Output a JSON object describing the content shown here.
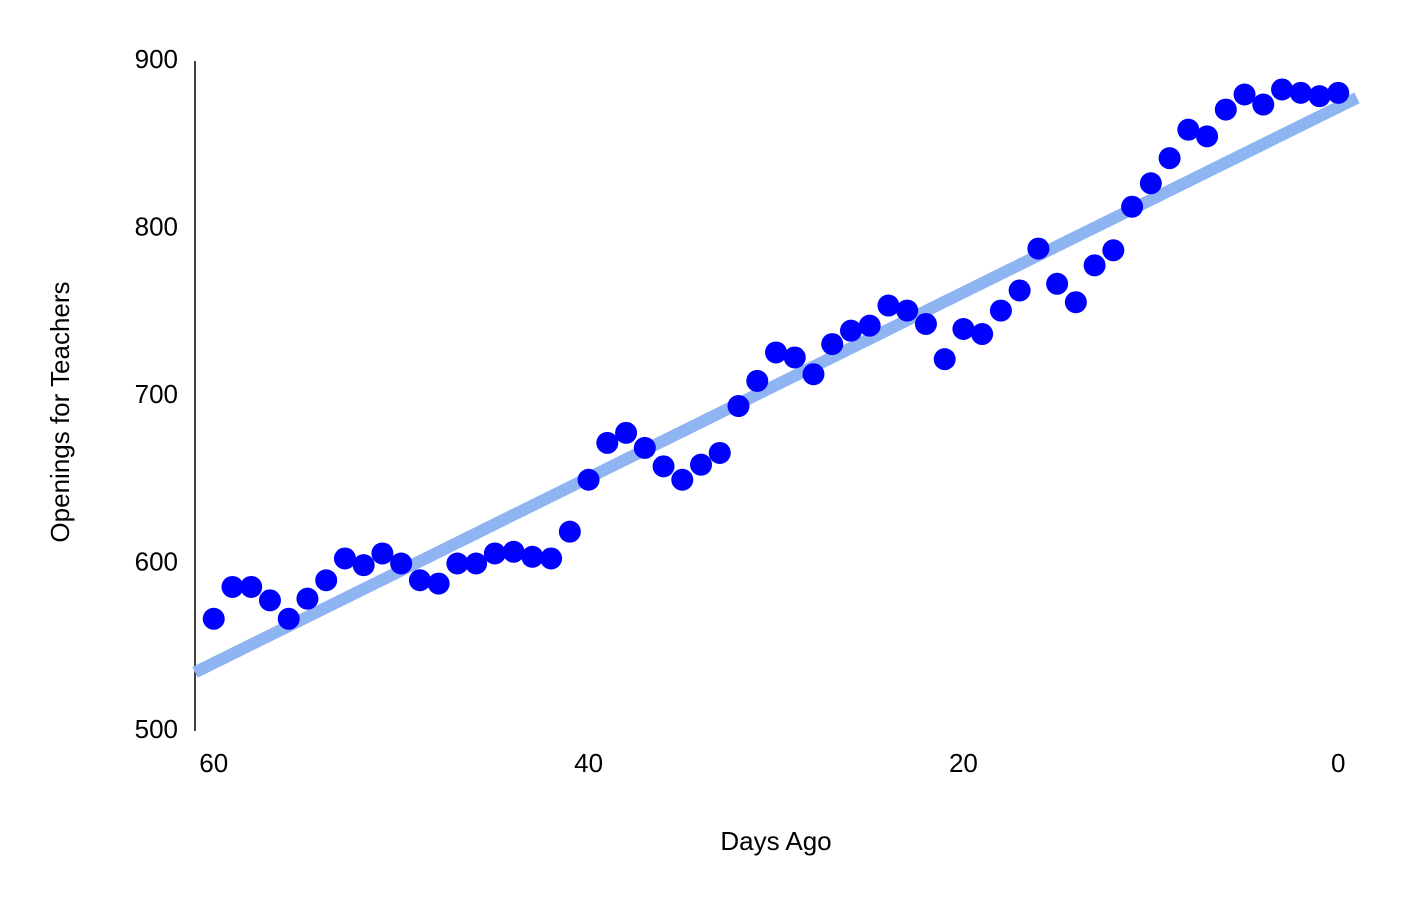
{
  "chart_data": {
    "type": "scatter",
    "x_label": "Days Ago",
    "y_label": "Openings for Teachers",
    "x": [
      60,
      59,
      58,
      57,
      56,
      55,
      54,
      53,
      52,
      51,
      50,
      49,
      48,
      47,
      46,
      45,
      44,
      43,
      42,
      41,
      40,
      39,
      38,
      37,
      36,
      35,
      34,
      33,
      32,
      31,
      30,
      29,
      28,
      27,
      26,
      25,
      24,
      23,
      22,
      21,
      20,
      19,
      18,
      17,
      16,
      15,
      14,
      13,
      12,
      11,
      10,
      9,
      8,
      7,
      6,
      5,
      4,
      3,
      2,
      1,
      0
    ],
    "values": [
      567,
      586,
      586,
      578,
      567,
      579,
      590,
      603,
      599,
      606,
      600,
      590,
      588,
      600,
      600,
      606,
      607,
      604,
      603,
      619,
      650,
      672,
      678,
      669,
      658,
      650,
      659,
      666,
      694,
      709,
      726,
      723,
      713,
      731,
      739,
      742,
      754,
      751,
      743,
      722,
      740,
      737,
      751,
      763,
      788,
      767,
      756,
      778,
      787,
      813,
      827,
      842,
      859,
      855,
      871,
      880,
      874,
      883,
      881,
      879,
      881
    ],
    "color": "#0000ff",
    "trendline": {
      "x": [
        61,
        -1
      ],
      "values": [
        535,
        878
      ],
      "color": "#8fb4f2"
    },
    "xlim": [
      61,
      -1
    ],
    "xticks": [
      60,
      40,
      20,
      0
    ],
    "ylim": [
      500,
      900
    ],
    "yticks": [
      500,
      600,
      700,
      800,
      900
    ],
    "grid": false
  }
}
